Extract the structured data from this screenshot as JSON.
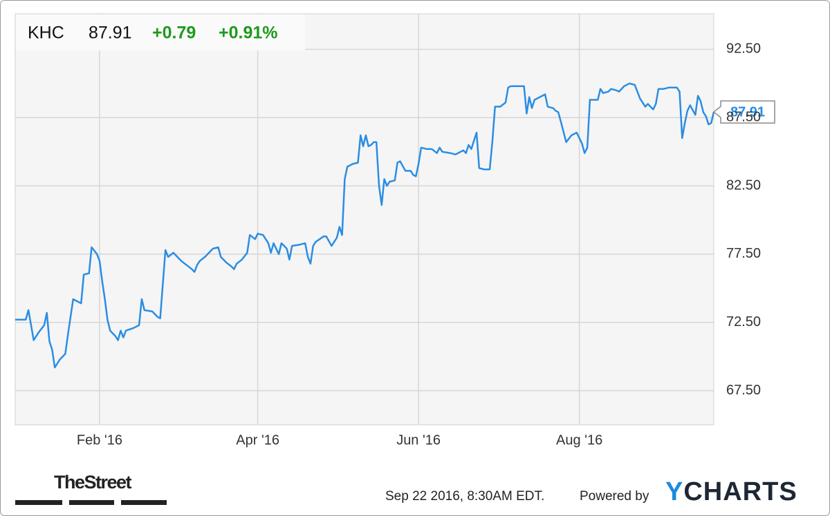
{
  "chart_data": {
    "type": "line",
    "header": {
      "symbol": "KHC",
      "change": "+0.79",
      "change_pct": "+0.91%"
    },
    "x": [
      0,
      4,
      5,
      7,
      9,
      11,
      12,
      13,
      14,
      15,
      17,
      19,
      20,
      22,
      24,
      25,
      26,
      28,
      29,
      31,
      32,
      33,
      34,
      35,
      36,
      38,
      39,
      40,
      41,
      42,
      45,
      47,
      48,
      49,
      52,
      54,
      55,
      57,
      58,
      60,
      61,
      63,
      65,
      67,
      68,
      69,
      70,
      72,
      75,
      77,
      78,
      80,
      82,
      83,
      84,
      86,
      88,
      89,
      91,
      92,
      94,
      96,
      97,
      98,
      100,
      101,
      102,
      103,
      104,
      105,
      108,
      110,
      111,
      112,
      113,
      114,
      117,
      118,
      120,
      122,
      123,
      124,
      125,
      126,
      128,
      130,
      131,
      132,
      133,
      134,
      135,
      136,
      137,
      138,
      139,
      140,
      141,
      142,
      144,
      145,
      146,
      148,
      150,
      151,
      152,
      153,
      154,
      156,
      158,
      160,
      161,
      162,
      165,
      167,
      170,
      171,
      172,
      173,
      174,
      175,
      176,
      178,
      180,
      181,
      182,
      184,
      186,
      187,
      188,
      190,
      193,
      194,
      195,
      196,
      197,
      201,
      202,
      204,
      205,
      206,
      207,
      209,
      211,
      213,
      215,
      216,
      217,
      218,
      220,
      221,
      222,
      223,
      225,
      226,
      228,
      229,
      231,
      233,
      235,
      237,
      239,
      240,
      242,
      243,
      244,
      246,
      248,
      251,
      252,
      253,
      254,
      255,
      256,
      258,
      259,
      260,
      261,
      262,
      263,
      264,
      265
    ],
    "series": [
      {
        "name": "KHC",
        "color": "#2a8de3",
        "values": [
          72.7,
          72.7,
          73.4,
          71.2,
          71.8,
          72.3,
          73.2,
          71.1,
          70.5,
          69.2,
          69.8,
          70.2,
          71.6,
          74.2,
          74.0,
          73.9,
          76.0,
          76.1,
          78.0,
          77.5,
          77.0,
          75.5,
          74.2,
          72.7,
          71.9,
          71.5,
          71.2,
          71.9,
          71.4,
          71.9,
          72.1,
          72.3,
          74.2,
          73.4,
          73.3,
          72.9,
          72.8,
          77.8,
          77.3,
          77.6,
          77.4,
          77.0,
          76.7,
          76.4,
          76.2,
          76.7,
          77.0,
          77.3,
          77.9,
          78.0,
          77.3,
          76.9,
          76.6,
          76.4,
          76.8,
          77.1,
          77.6,
          78.9,
          78.6,
          79.0,
          78.9,
          78.3,
          77.6,
          78.3,
          77.5,
          78.3,
          78.1,
          77.9,
          77.1,
          78.1,
          78.2,
          78.3,
          77.3,
          76.8,
          78.1,
          78.4,
          78.8,
          78.8,
          78.1,
          78.7,
          79.5,
          78.9,
          83.0,
          83.9,
          84.1,
          84.2,
          86.2,
          85.4,
          86.2,
          85.4,
          85.5,
          85.7,
          85.7,
          82.5,
          81.1,
          83.0,
          82.5,
          82.8,
          82.9,
          84.2,
          84.3,
          83.6,
          83.6,
          83.3,
          83.2,
          84.1,
          85.3,
          85.2,
          85.2,
          84.9,
          85.3,
          85.0,
          84.9,
          84.8,
          85.1,
          84.9,
          85.5,
          85.2,
          85.8,
          86.4,
          83.8,
          83.7,
          83.7,
          85.7,
          88.3,
          88.3,
          88.6,
          89.7,
          89.8,
          89.8,
          89.8,
          87.8,
          89.0,
          88.2,
          88.8,
          89.2,
          88.3,
          88.2,
          88.0,
          87.9,
          87.2,
          85.7,
          86.2,
          86.4,
          85.6,
          84.9,
          85.3,
          88.8,
          88.8,
          88.8,
          89.6,
          89.3,
          89.4,
          89.6,
          89.5,
          89.4,
          89.8,
          90.0,
          89.9,
          88.9,
          88.3,
          88.5,
          88.1,
          88.5,
          89.6,
          89.6,
          89.7,
          89.7,
          89.4,
          86.0,
          87.1,
          88.0,
          88.4,
          87.7,
          89.1,
          88.7,
          87.9,
          87.6,
          87.0,
          87.1,
          87.91
        ]
      }
    ],
    "xlim": [
      0,
      265
    ],
    "xticks": [
      {
        "value": 32,
        "label": "Feb '16"
      },
      {
        "value": 92,
        "label": "Apr '16"
      },
      {
        "value": 153,
        "label": "Jun '16"
      },
      {
        "value": 214,
        "label": "Aug '16"
      }
    ],
    "ylim": [
      65.0,
      95.1
    ],
    "yticks": [
      {
        "value": 67.5,
        "label": "67.50"
      },
      {
        "value": 72.5,
        "label": "72.50"
      },
      {
        "value": 77.5,
        "label": "77.50"
      },
      {
        "value": 82.5,
        "label": "82.50"
      },
      {
        "value": 87.5,
        "label": "87.50"
      },
      {
        "value": 92.5,
        "label": "92.50"
      }
    ],
    "grid": true,
    "footer": {
      "source": "TheStreet",
      "timestamp": "Sep 22 2016, 8:30AM EDT.",
      "powered": "Powered by",
      "brand": "YCHARTS"
    }
  }
}
